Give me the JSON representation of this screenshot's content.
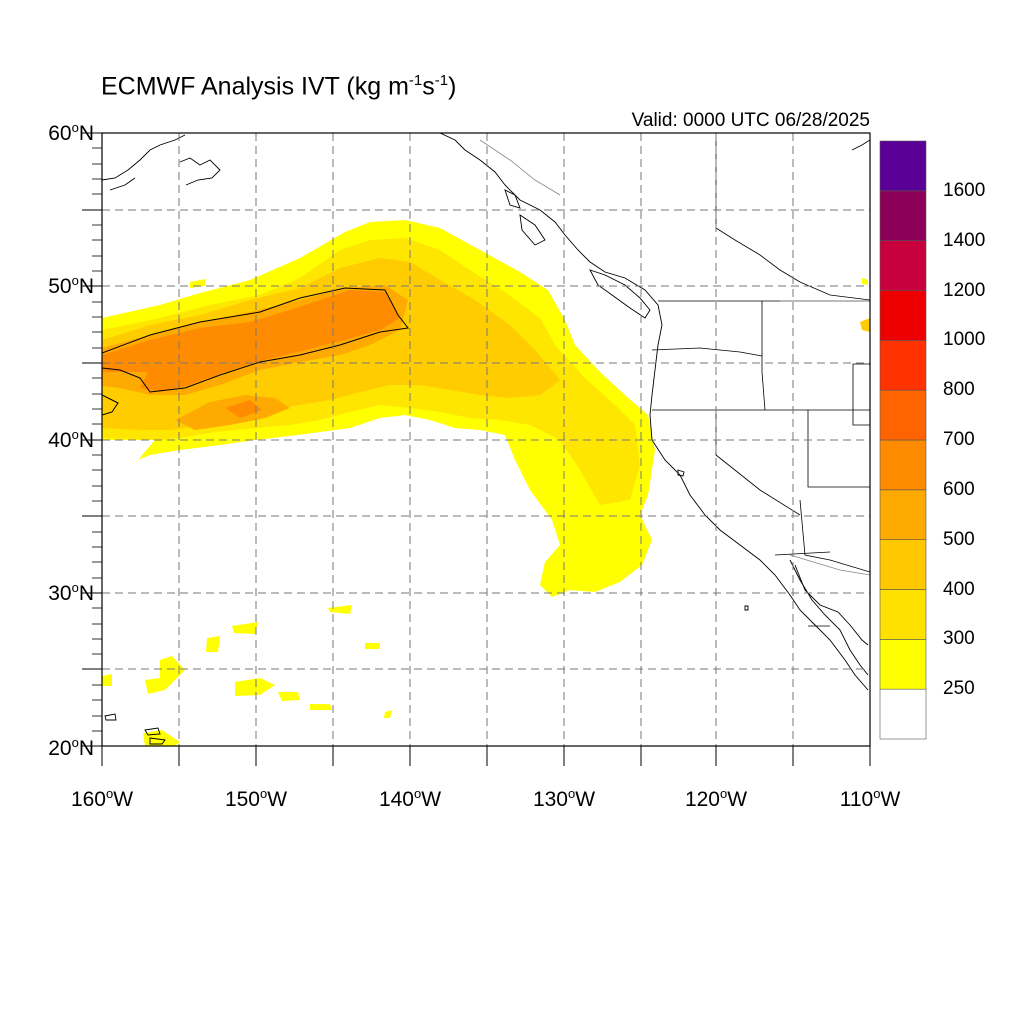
{
  "title": {
    "prefix": "ECMWF Analysis IVT (kg m",
    "exp1": "-1",
    "mid": "s",
    "exp2": "-1",
    "suffix": ")"
  },
  "valid": "Valid: 0000 UTC 06/28/2025",
  "map": {
    "lon_range": [
      -160,
      -110
    ],
    "lat_range": [
      20,
      60
    ],
    "grid": true,
    "grid_style": "dashed"
  },
  "lat_labels": [
    {
      "value": "60",
      "hemi": "N"
    },
    {
      "value": "50",
      "hemi": "N"
    },
    {
      "value": "40",
      "hemi": "N"
    },
    {
      "value": "30",
      "hemi": "N"
    },
    {
      "value": "20",
      "hemi": "N"
    }
  ],
  "lon_labels": [
    {
      "value": "160",
      "hemi": "W"
    },
    {
      "value": "150",
      "hemi": "W"
    },
    {
      "value": "140",
      "hemi": "W"
    },
    {
      "value": "130",
      "hemi": "W"
    },
    {
      "value": "120",
      "hemi": "W"
    },
    {
      "value": "110",
      "hemi": "W"
    }
  ],
  "colorbar": {
    "levels": [
      "250",
      "300",
      "400",
      "500",
      "600",
      "700",
      "800",
      "1000",
      "1200",
      "1400",
      "1600"
    ],
    "colors": [
      "#ffffff",
      "#ffff00",
      "#ffe100",
      "#ffc800",
      "#ffaa00",
      "#ff8c00",
      "#ff6400",
      "#ff3200",
      "#ee0000",
      "#c8003c",
      "#8c005a",
      "#5a0096"
    ]
  },
  "colors": {
    "ivt_250": "#ffff00",
    "ivt_300": "#ffe600",
    "ivt_400": "#ffcc00",
    "ivt_500": "#ffaa00",
    "ivt_600": "#ff8c00",
    "coast": "#000000",
    "grid": "#777777"
  }
}
